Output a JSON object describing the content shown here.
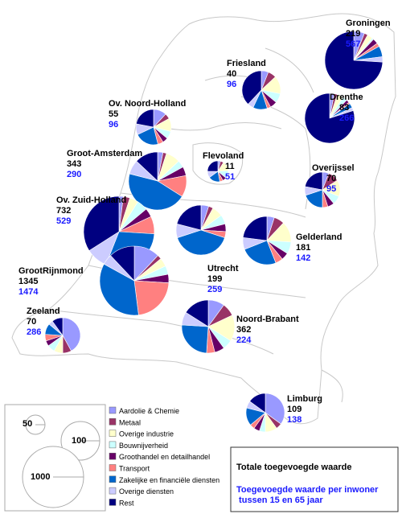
{
  "colors": {
    "aardolie": "#9999ff",
    "metaal": "#993366",
    "overige_industrie": "#ffffcc",
    "bouw": "#ccffff",
    "groothandel": "#660066",
    "transport": "#ff8080",
    "zakelijk": "#0066cc",
    "overige_diensten": "#ccccff",
    "rest": "#000080",
    "capita_text": "#1a1aff",
    "outline": "#c8c8c8"
  },
  "sector_order": [
    "aardolie",
    "metaal",
    "overige_industrie",
    "bouw",
    "groothandel",
    "transport",
    "zakelijk",
    "overige_diensten",
    "rest"
  ],
  "regions": [
    {
      "id": "groningen",
      "name": "Groningen",
      "total": "219",
      "capita": "567",
      "shares": [
        0.06,
        0.02,
        0.03,
        0.01,
        0.03,
        0.02,
        0.06,
        0.03,
        0.74
      ]
    },
    {
      "id": "friesland",
      "name": "Friesland",
      "total": "40",
      "capita": "96",
      "shares": [
        0.06,
        0.07,
        0.15,
        0.08,
        0.06,
        0.03,
        0.12,
        0.05,
        0.38
      ]
    },
    {
      "id": "drenthe",
      "name": "Drenthe",
      "total": "83",
      "capita": "266",
      "shares": [
        0.03,
        0.02,
        0.04,
        0.03,
        0.02,
        0.01,
        0.03,
        0.02,
        0.8
      ]
    },
    {
      "id": "ov-noord-holland",
      "name": "Ov. Noord-Holland",
      "total": "55",
      "capita": "96",
      "shares": [
        0.12,
        0.05,
        0.12,
        0.07,
        0.05,
        0.05,
        0.22,
        0.1,
        0.22
      ]
    },
    {
      "id": "groot-amsterdam",
      "name": "Groot-Amsterdam",
      "total": "343",
      "capita": "290",
      "shares": [
        0.03,
        0.02,
        0.08,
        0.04,
        0.05,
        0.12,
        0.45,
        0.08,
        0.13
      ]
    },
    {
      "id": "flevoland",
      "name": "Flevoland",
      "total": "11",
      "capita": "51",
      "shares": [
        0.04,
        0.05,
        0.15,
        0.12,
        0.06,
        0.05,
        0.18,
        0.1,
        0.25
      ]
    },
    {
      "id": "overijssel",
      "name": "Overijssel",
      "total": "70",
      "capita": "95",
      "shares": [
        0.06,
        0.1,
        0.15,
        0.08,
        0.06,
        0.05,
        0.2,
        0.08,
        0.22
      ]
    },
    {
      "id": "ov-zuid-holland",
      "name": "Ov. Zuid-Holland",
      "total": "732",
      "capita": "529",
      "shares": [
        0.02,
        0.03,
        0.04,
        0.05,
        0.04,
        0.08,
        0.3,
        0.1,
        0.34
      ]
    },
    {
      "id": "utrecht",
      "name": "Utrecht",
      "total": "199",
      "capita": "259",
      "shares": [
        0.05,
        0.03,
        0.07,
        0.06,
        0.05,
        0.04,
        0.4,
        0.09,
        0.21
      ]
    },
    {
      "id": "gelderland",
      "name": "Gelderland",
      "total": "181",
      "capita": "142",
      "shares": [
        0.05,
        0.07,
        0.14,
        0.08,
        0.05,
        0.05,
        0.25,
        0.08,
        0.23
      ]
    },
    {
      "id": "grootrijnmond",
      "name": "GrootRijnmond",
      "total": "1345",
      "capita": "1474",
      "shares": [
        0.12,
        0.02,
        0.04,
        0.04,
        0.04,
        0.22,
        0.35,
        0.05,
        0.12
      ]
    },
    {
      "id": "zeeland",
      "name": "Zeeland",
      "total": "70",
      "capita": "286",
      "shares": [
        0.42,
        0.08,
        0.08,
        0.07,
        0.05,
        0.06,
        0.1,
        0.04,
        0.1
      ]
    },
    {
      "id": "noord-brabant",
      "name": "Noord-Brabant",
      "total": "362",
      "capita": "224",
      "shares": [
        0.1,
        0.08,
        0.16,
        0.06,
        0.06,
        0.05,
        0.25,
        0.08,
        0.16
      ]
    },
    {
      "id": "limburg",
      "name": "Limburg",
      "total": "109",
      "capita": "138",
      "shares": [
        0.35,
        0.05,
        0.1,
        0.05,
        0.05,
        0.04,
        0.15,
        0.06,
        0.15
      ]
    }
  ],
  "legend": {
    "sizes": [
      "50",
      "100",
      "1000"
    ],
    "items": [
      {
        "key": "aardolie",
        "label": "Aardolie & Chemie"
      },
      {
        "key": "metaal",
        "label": "Metaal"
      },
      {
        "key": "overige_industrie",
        "label": "Overige industrie"
      },
      {
        "key": "bouw",
        "label": "Bouwnijverheid"
      },
      {
        "key": "groothandel",
        "label": "Groothandel en detailhandel"
      },
      {
        "key": "transport",
        "label": "Transport"
      },
      {
        "key": "zakelijk",
        "label": "Zakelijke en financiële diensten"
      },
      {
        "key": "overige_diensten",
        "label": "Overige diensten"
      },
      {
        "key": "rest",
        "label": "Rest"
      }
    ]
  },
  "explanation": {
    "total_label": "Totale toegevoegde waarde",
    "capita_line1": "Toegevoegde waarde per inwoner",
    "capita_line2": " tussen 15 en 65 jaar"
  }
}
